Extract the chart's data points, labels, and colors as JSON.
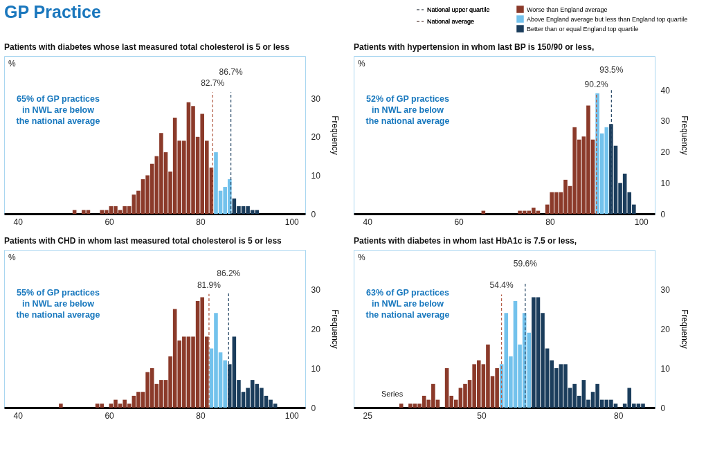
{
  "chart_data": [
    {
      "type": "other",
      "title": "GP Practice"
    },
    {
      "type": "histogram",
      "title": "Patients with diabetes whose last measured total cholesterol is 5 or less",
      "ylabel": "Frequency",
      "bins": [
        52,
        53,
        54,
        55,
        56,
        57,
        58,
        59,
        60,
        61,
        62,
        63,
        64,
        65,
        66,
        67,
        68,
        69,
        70,
        71,
        72,
        73,
        74,
        75,
        76,
        77,
        78,
        79,
        80,
        81,
        82,
        83,
        84,
        85,
        86,
        87,
        88,
        89,
        90,
        91,
        92,
        93
      ],
      "xlim": [
        37,
        103
      ],
      "xticks": [
        40,
        60,
        80,
        100
      ],
      "ylim": [
        0,
        41
      ],
      "yticks": [
        0,
        10,
        20,
        30
      ],
      "series": [
        {
          "color": "#8b3a2a",
          "values": [
            1,
            0,
            1,
            1,
            0,
            0,
            1,
            1,
            2,
            2,
            1,
            2,
            2,
            5,
            6,
            9,
            10,
            13,
            15,
            21,
            16,
            11,
            25,
            19,
            19,
            29,
            28,
            20,
            26,
            19,
            12,
            null,
            null,
            null,
            null,
            null,
            null,
            null,
            null,
            null,
            null
          ]
        },
        {
          "color": "#73c2ec",
          "values": [
            null,
            null,
            null,
            null,
            null,
            null,
            null,
            null,
            null,
            null,
            null,
            null,
            null,
            null,
            null,
            null,
            null,
            null,
            null,
            null,
            null,
            null,
            null,
            null,
            null,
            null,
            null,
            null,
            null,
            null,
            null,
            16,
            6,
            7,
            9,
            null,
            null,
            null,
            null,
            null,
            null
          ]
        },
        {
          "color": "#1b3d5c",
          "values": [
            null,
            null,
            null,
            null,
            null,
            null,
            null,
            null,
            null,
            null,
            null,
            null,
            null,
            null,
            null,
            null,
            null,
            null,
            null,
            null,
            null,
            null,
            null,
            null,
            null,
            null,
            null,
            null,
            null,
            null,
            null,
            null,
            null,
            null,
            null,
            4,
            2,
            2,
            2,
            1,
            1
          ]
        },
        {
          "type": "line",
          "color": "#b5604a",
          "line_style": "dashed",
          "x": [
            82.7,
            82.7
          ],
          "values": [
            0,
            31.6
          ]
        },
        {
          "type": "line",
          "color": "#2d4d6a",
          "line_style": "dashed",
          "x": [
            86.7,
            86.7
          ],
          "values": [
            0,
            31.6
          ]
        }
      ],
      "annotations": [
        "%",
        "65% of GP practices\nin NWL are below\nthe national average",
        "82.7%",
        "86.7%"
      ]
    },
    {
      "type": "histogram",
      "title": "Patients with hypertension  in whom last BP is 150/90 or less,",
      "ylabel": "Frequency",
      "legend": "top",
      "bins": [
        65,
        66,
        67,
        68,
        69,
        70,
        71,
        72,
        73,
        74,
        75,
        76,
        77,
        78,
        79,
        80,
        81,
        82,
        83,
        84,
        85,
        86,
        87,
        88,
        89,
        90,
        91,
        92,
        93,
        94,
        95,
        96,
        97,
        98,
        99
      ],
      "xlim": [
        37,
        103
      ],
      "xticks": [
        40,
        60,
        80,
        100
      ],
      "ylim": [
        0,
        51
      ],
      "yticks": [
        0,
        10,
        20,
        30,
        40
      ],
      "series": [
        {
          "name": "Worse than England  average",
          "color": "#8b3a2a",
          "values": [
            1,
            0,
            0,
            0,
            0,
            0,
            0,
            0,
            1,
            1,
            1,
            2,
            1,
            0,
            3,
            7,
            7,
            7,
            11,
            9,
            28,
            24,
            25,
            35,
            24,
            null,
            null,
            null,
            null,
            null,
            null,
            null,
            null,
            null
          ]
        },
        {
          "name": "Above England  average but less than England top quartile",
          "color": "#73c2ec",
          "values": [
            null,
            null,
            null,
            null,
            null,
            null,
            null,
            null,
            null,
            null,
            null,
            null,
            null,
            null,
            null,
            null,
            null,
            null,
            null,
            null,
            null,
            null,
            null,
            null,
            null,
            39,
            26,
            28,
            null,
            null,
            null,
            null,
            null,
            null
          ]
        },
        {
          "name": "Better than or equal  England top quartile",
          "color": "#1b3d5c",
          "values": [
            null,
            null,
            null,
            null,
            null,
            null,
            null,
            null,
            null,
            null,
            null,
            null,
            null,
            null,
            null,
            null,
            null,
            null,
            null,
            null,
            null,
            null,
            null,
            null,
            null,
            null,
            null,
            null,
            29,
            22,
            10,
            13,
            7,
            3
          ]
        },
        {
          "name": "National upper quartile",
          "type": "line",
          "color": "#2d4d6a",
          "line_style": "dashed",
          "x": [
            93.5,
            93.5
          ],
          "values": [
            0,
            40
          ]
        },
        {
          "name": "National average",
          "type": "line",
          "color": "#b5604a",
          "line_style": "dashed",
          "x": [
            90.2,
            90.2
          ],
          "values": [
            0,
            38.9
          ]
        }
      ],
      "annotations": [
        "%",
        "52% of GP practices\nin NWL are below\nthe national average",
        "93.5%",
        "90.2%"
      ]
    },
    {
      "type": "histogram",
      "title": "Patients with CHD  in whom last measured total cholesterol is 5 or less",
      "ylabel": "Frequency",
      "bins": [
        49,
        50,
        51,
        52,
        53,
        54,
        55,
        56,
        57,
        58,
        59,
        60,
        61,
        62,
        63,
        64,
        65,
        66,
        67,
        68,
        69,
        70,
        71,
        72,
        73,
        74,
        75,
        76,
        77,
        78,
        79,
        80,
        81,
        82,
        83,
        84,
        85,
        86,
        87,
        88,
        89,
        90,
        91,
        92,
        93,
        94,
        95,
        96,
        97
      ],
      "xlim": [
        37,
        103
      ],
      "xticks": [
        40,
        60,
        80,
        100
      ],
      "ylim": [
        0,
        40
      ],
      "yticks": [
        0,
        10,
        20,
        30
      ],
      "series": [
        {
          "color": "#8b3a2a",
          "values": [
            1,
            0,
            0,
            0,
            0,
            0,
            0,
            0,
            1,
            1,
            0,
            1,
            2,
            1,
            2,
            1,
            3,
            4,
            4,
            9,
            10,
            6,
            7,
            7,
            13,
            25,
            17,
            18,
            18,
            18,
            27,
            28,
            18,
            null,
            null,
            null,
            null,
            null,
            null,
            null,
            null,
            null,
            null,
            null,
            null,
            null,
            null,
            null
          ]
        },
        {
          "color": "#73c2ec",
          "values": [
            null,
            null,
            null,
            null,
            null,
            null,
            null,
            null,
            null,
            null,
            null,
            null,
            null,
            null,
            null,
            null,
            null,
            null,
            null,
            null,
            null,
            null,
            null,
            null,
            null,
            null,
            null,
            null,
            null,
            null,
            null,
            null,
            null,
            15,
            24,
            14,
            12,
            null,
            null,
            null,
            null,
            null,
            null,
            null,
            null,
            null,
            null,
            null
          ]
        },
        {
          "color": "#1b3d5c",
          "values": [
            null,
            null,
            null,
            null,
            null,
            null,
            null,
            null,
            null,
            null,
            null,
            null,
            null,
            null,
            null,
            null,
            null,
            null,
            null,
            null,
            null,
            null,
            null,
            null,
            null,
            null,
            null,
            null,
            null,
            null,
            null,
            null,
            null,
            null,
            null,
            null,
            null,
            11,
            18,
            7,
            4,
            5,
            7,
            6,
            5,
            3,
            2,
            1
          ]
        },
        {
          "type": "line",
          "color": "#b5604a",
          "line_style": "dashed",
          "x": [
            81.9,
            81.9
          ],
          "values": [
            0,
            28.8
          ]
        },
        {
          "type": "line",
          "color": "#2d4d6a",
          "line_style": "dashed",
          "x": [
            86.2,
            86.2
          ],
          "values": [
            0,
            29
          ]
        }
      ],
      "annotations": [
        "%",
        "55% of GP practices\nin NWL are below\nthe national average",
        "81.9%",
        "86.2%"
      ]
    },
    {
      "type": "histogram",
      "title": "Patients with diabetes in whom last HbA1c is 7.5 or less,",
      "ylabel": "Frequency",
      "bins": [
        32,
        33,
        34,
        35,
        36,
        37,
        38,
        39,
        40,
        41,
        42,
        43,
        44,
        45,
        46,
        47,
        48,
        49,
        50,
        51,
        52,
        53,
        54,
        55,
        56,
        57,
        58,
        59,
        60,
        61,
        62,
        63,
        64,
        65,
        66,
        67,
        68,
        69,
        70,
        71,
        72,
        73,
        74,
        75,
        76,
        77,
        78,
        79,
        80,
        81,
        82,
        83,
        84,
        85,
        86
      ],
      "xlim": [
        22,
        88
      ],
      "xticks": [
        25,
        50,
        80
      ],
      "ylim": [
        0,
        40
      ],
      "yticks": [
        0,
        10,
        20,
        30
      ],
      "series": [
        {
          "color": "#8b3a2a",
          "values": [
            1,
            0,
            1,
            1,
            1,
            3,
            2,
            6,
            2,
            0,
            10,
            3,
            2,
            5,
            6,
            7,
            11,
            12,
            11,
            16,
            8,
            10,
            null,
            null,
            null,
            null,
            null,
            null,
            null,
            null,
            null,
            null,
            null,
            null,
            null,
            null,
            null,
            null,
            null,
            null,
            null,
            null,
            null,
            null,
            null,
            null,
            null,
            null,
            null,
            null,
            null,
            null,
            null,
            null
          ]
        },
        {
          "color": "#73c2ec",
          "values": [
            null,
            null,
            null,
            null,
            null,
            null,
            null,
            null,
            null,
            null,
            null,
            null,
            null,
            null,
            null,
            null,
            null,
            null,
            null,
            null,
            null,
            null,
            11,
            24,
            13,
            27,
            16,
            24,
            19,
            null,
            null,
            null,
            null,
            null,
            null,
            null,
            null,
            null,
            null,
            null,
            null,
            null,
            null,
            null,
            null,
            null,
            null,
            null,
            null,
            null,
            null,
            null,
            null,
            null
          ]
        },
        {
          "color": "#1b3d5c",
          "values": [
            null,
            null,
            null,
            null,
            null,
            null,
            null,
            null,
            null,
            null,
            null,
            null,
            null,
            null,
            null,
            null,
            null,
            null,
            null,
            null,
            null,
            null,
            null,
            null,
            null,
            null,
            null,
            null,
            null,
            28,
            28,
            24,
            15,
            12,
            10,
            11,
            11,
            5,
            6,
            3,
            7,
            2,
            4,
            6,
            2,
            2,
            2,
            1,
            0,
            1,
            5,
            1,
            1,
            1
          ]
        },
        {
          "type": "line",
          "color": "#b5604a",
          "line_style": "dashed",
          "x": [
            54.4,
            54.4
          ],
          "values": [
            0,
            28.7
          ]
        },
        {
          "type": "line",
          "color": "#2d4d6a",
          "line_style": "dashed",
          "x": [
            59.6,
            59.6
          ],
          "values": [
            0,
            31.4
          ]
        }
      ],
      "annotations": [
        "%",
        "63% of GP practices\nin NWL are below\nthe national average",
        "54.4%",
        "59.6%",
        "Series"
      ]
    }
  ]
}
